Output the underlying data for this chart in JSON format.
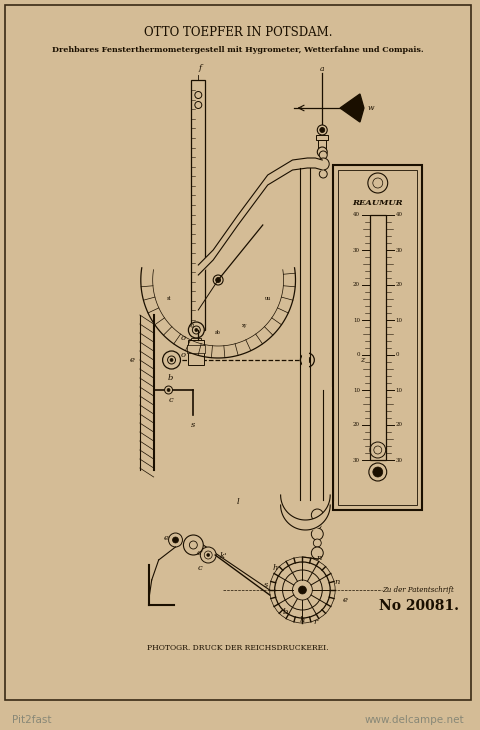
{
  "bg_color": "#d4bc96",
  "border_color": "#3a2a15",
  "title1": "OTTO TOEPFER IN POTSDAM.",
  "title2": "Drehbares Fensterthermometergestell mit Hygrometer, Wetterfahne und Compais.",
  "footer1": "PHOTOGR. DRUCK DER REICHSDRUCKEREI.",
  "footer2": "Zu der Patentschrift",
  "footer3": "No 20081.",
  "watermark_left": "Pit2fast",
  "watermark_right": "www.delcampe.net",
  "ink_color": "#1a0f00",
  "paper_color": "#d4bc96"
}
